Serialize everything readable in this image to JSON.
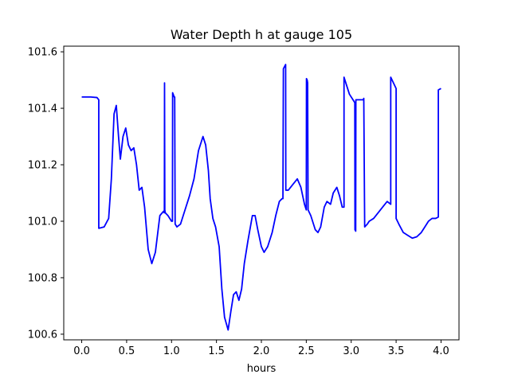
{
  "chart_data": {
    "type": "line",
    "title": "Water Depth h at gauge 105",
    "xlabel": "hours",
    "ylabel": "",
    "xlim": [
      -0.2,
      4.2
    ],
    "ylim": [
      100.58,
      101.62
    ],
    "xticks": [
      0.0,
      0.5,
      1.0,
      1.5,
      2.0,
      2.5,
      3.0,
      3.5,
      4.0
    ],
    "xtick_labels": [
      "0.0",
      "0.5",
      "1.0",
      "1.5",
      "2.0",
      "2.5",
      "3.0",
      "3.5",
      "4.0"
    ],
    "yticks": [
      100.6,
      100.8,
      101.0,
      101.2,
      101.4,
      101.6
    ],
    "ytick_labels": [
      "100.6",
      "100.8",
      "101.0",
      "101.2",
      "101.4",
      "101.6"
    ],
    "grid": false,
    "color": "#0000ff",
    "series": [
      {
        "x": [
          0.0,
          0.1,
          0.17,
          0.19,
          0.19,
          0.25,
          0.3,
          0.33,
          0.36,
          0.385,
          0.41,
          0.43,
          0.46,
          0.49,
          0.52,
          0.55,
          0.58,
          0.61,
          0.64,
          0.67,
          0.7,
          0.74,
          0.78,
          0.82,
          0.87,
          0.91,
          0.92,
          0.922,
          0.925,
          0.93,
          0.96,
          1.0,
          1.01,
          1.012,
          1.03,
          1.035,
          1.04,
          1.06,
          1.1,
          1.15,
          1.2,
          1.25,
          1.3,
          1.35,
          1.38,
          1.41,
          1.43,
          1.46,
          1.49,
          1.53,
          1.56,
          1.59,
          1.63,
          1.66,
          1.69,
          1.72,
          1.75,
          1.78,
          1.81,
          1.85,
          1.9,
          1.93,
          1.96,
          2.0,
          2.03,
          2.07,
          2.12,
          2.16,
          2.2,
          2.23,
          2.24,
          2.245,
          2.27,
          2.272,
          2.3,
          2.35,
          2.4,
          2.44,
          2.48,
          2.5,
          2.502,
          2.51,
          2.515,
          2.52,
          2.55,
          2.6,
          2.63,
          2.66,
          2.7,
          2.73,
          2.77,
          2.8,
          2.84,
          2.87,
          2.9,
          2.92,
          2.92,
          2.95,
          2.98,
          3.02,
          3.04,
          3.042,
          3.05,
          3.052,
          3.07,
          3.1,
          3.135,
          3.14,
          3.15,
          3.18,
          3.2,
          3.25,
          3.3,
          3.35,
          3.4,
          3.44,
          3.44,
          3.47,
          3.5,
          3.5,
          3.53,
          3.58,
          3.63,
          3.68,
          3.73,
          3.78,
          3.82,
          3.86,
          3.9,
          3.94,
          3.97,
          3.97,
          4.0
        ],
        "y": [
          101.44,
          101.44,
          101.438,
          101.43,
          100.975,
          100.98,
          101.01,
          101.15,
          101.38,
          101.41,
          101.3,
          101.22,
          101.3,
          101.33,
          101.27,
          101.25,
          101.26,
          101.2,
          101.11,
          101.12,
          101.05,
          100.9,
          100.85,
          100.89,
          101.02,
          101.035,
          101.03,
          101.49,
          101.04,
          101.03,
          101.02,
          101.0,
          101.0,
          101.455,
          101.44,
          101.44,
          100.99,
          100.98,
          100.99,
          101.04,
          101.09,
          101.15,
          101.25,
          101.3,
          101.27,
          101.18,
          101.08,
          101.01,
          100.98,
          100.91,
          100.76,
          100.66,
          100.615,
          100.68,
          100.74,
          100.75,
          100.72,
          100.76,
          100.85,
          100.93,
          101.02,
          101.02,
          100.97,
          100.91,
          100.89,
          100.91,
          100.96,
          101.02,
          101.07,
          101.08,
          101.08,
          101.54,
          101.555,
          101.11,
          101.11,
          101.13,
          101.15,
          101.12,
          101.06,
          101.04,
          101.505,
          101.5,
          101.49,
          101.04,
          101.02,
          100.97,
          100.96,
          100.98,
          101.05,
          101.07,
          101.06,
          101.1,
          101.12,
          101.09,
          101.05,
          101.05,
          101.51,
          101.48,
          101.45,
          101.43,
          101.42,
          100.97,
          100.965,
          101.43,
          101.43,
          101.43,
          101.43,
          101.435,
          100.98,
          100.99,
          101.0,
          101.01,
          101.03,
          101.05,
          101.07,
          101.06,
          101.51,
          101.49,
          101.47,
          101.01,
          100.99,
          100.96,
          100.95,
          100.94,
          100.945,
          100.96,
          100.98,
          101.0,
          101.01,
          101.01,
          101.015,
          101.465,
          101.47
        ]
      }
    ]
  }
}
